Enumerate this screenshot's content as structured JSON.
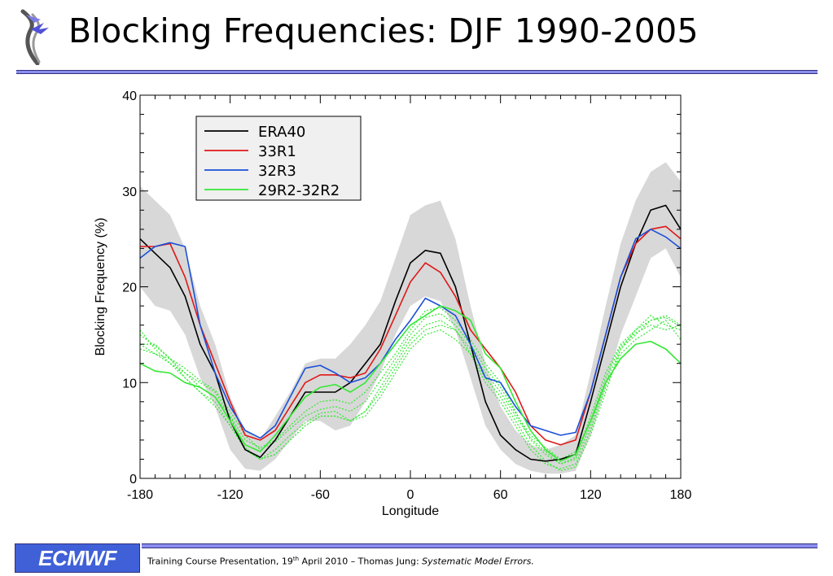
{
  "slide": {
    "title": "Blocking Frequencies: DJF 1990-2005",
    "footer": {
      "logo_text": "ECMWF",
      "prefix": "Training Course Presentation, 19",
      "superscript": "th",
      "middle": " April 2010 – Thomas Jung: ",
      "italic": "Systematic Model Errors."
    }
  },
  "chart_data": {
    "type": "line",
    "title": "",
    "xlabel": "Longitude",
    "ylabel": "Blocking Frequency (%)",
    "xlim": [
      -180,
      180
    ],
    "ylim": [
      0,
      40
    ],
    "xticks": [
      -180,
      -120,
      -60,
      0,
      60,
      120,
      180
    ],
    "yticks": [
      0,
      10,
      20,
      30,
      40
    ],
    "grid": false,
    "legend_position": "top-left",
    "x": [
      -180,
      -170,
      -160,
      -150,
      -140,
      -130,
      -120,
      -110,
      -100,
      -90,
      -80,
      -70,
      -60,
      -50,
      -40,
      -30,
      -20,
      -10,
      0,
      10,
      20,
      30,
      40,
      50,
      60,
      70,
      80,
      90,
      100,
      110,
      120,
      130,
      140,
      150,
      160,
      170,
      180
    ],
    "series": [
      {
        "name": "ERA40",
        "color": "#000000",
        "values": [
          25.0,
          23.5,
          22.0,
          19.0,
          14.0,
          11.0,
          6.0,
          3.0,
          2.2,
          4.0,
          6.5,
          9.0,
          9.0,
          9.0,
          10.0,
          12.0,
          14.0,
          18.5,
          22.5,
          23.8,
          23.5,
          20.0,
          14.0,
          8.0,
          4.5,
          3.0,
          2.0,
          1.8,
          2.0,
          2.5,
          8.0,
          14.0,
          20.0,
          24.5,
          28.0,
          28.5,
          26.0
        ]
      },
      {
        "name": "33R1",
        "color": "#e01818",
        "values": [
          24.2,
          24.2,
          24.5,
          21.0,
          16.0,
          12.0,
          8.0,
          4.5,
          4.0,
          5.0,
          7.5,
          10.0,
          10.8,
          10.8,
          10.5,
          11.0,
          13.5,
          17.0,
          20.5,
          22.5,
          21.5,
          19.0,
          15.5,
          13.5,
          11.5,
          9.0,
          5.5,
          4.0,
          3.5,
          4.0,
          9.0,
          15.0,
          21.0,
          24.5,
          26.0,
          26.3,
          25.0
        ]
      },
      {
        "name": "32R3",
        "color": "#1a50d8",
        "values": [
          23.0,
          24.2,
          24.6,
          24.2,
          16.0,
          11.0,
          7.5,
          5.0,
          4.2,
          5.5,
          8.5,
          11.5,
          11.8,
          11.0,
          10.0,
          10.5,
          12.0,
          14.5,
          16.5,
          18.8,
          18.0,
          17.0,
          14.0,
          10.5,
          10.0,
          7.5,
          5.5,
          5.0,
          4.5,
          4.8,
          9.0,
          15.0,
          21.0,
          25.0,
          26.0,
          25.2,
          24.0
        ]
      },
      {
        "name": "29R2-32R2",
        "color": "#33e833",
        "values": [
          12.0,
          11.2,
          11.0,
          10.0,
          9.5,
          8.5,
          6.0,
          3.5,
          2.8,
          4.5,
          6.5,
          8.5,
          9.5,
          9.8,
          9.0,
          10.0,
          12.0,
          14.0,
          16.0,
          17.0,
          18.0,
          17.5,
          16.5,
          13.0,
          11.5,
          8.0,
          5.0,
          3.0,
          1.8,
          2.5,
          6.0,
          10.0,
          12.5,
          14.0,
          14.3,
          13.5,
          12.0
        ]
      }
    ],
    "ensemble_lines": [
      {
        "color": "#33e833",
        "style": "dashed",
        "values": [
          15.5,
          13.5,
          12.0,
          11.0,
          10.0,
          9.0,
          6.5,
          4.0,
          3.2,
          4.0,
          5.5,
          7.0,
          8.0,
          8.2,
          7.8,
          9.0,
          11.0,
          13.0,
          15.5,
          17.5,
          17.8,
          16.5,
          14.5,
          12.0,
          10.0,
          7.0,
          4.0,
          2.5,
          1.5,
          2.2,
          6.5,
          11.0,
          14.0,
          15.5,
          16.5,
          16.8,
          15.8
        ]
      },
      {
        "color": "#33e833",
        "style": "dashed",
        "values": [
          14.0,
          14.0,
          12.5,
          11.0,
          9.5,
          8.5,
          6.5,
          3.0,
          2.0,
          3.0,
          4.5,
          5.8,
          6.8,
          7.0,
          6.0,
          7.0,
          9.5,
          12.0,
          14.5,
          16.0,
          16.5,
          15.5,
          13.5,
          11.0,
          9.0,
          6.5,
          4.2,
          2.8,
          1.5,
          2.0,
          5.5,
          10.0,
          13.5,
          15.0,
          16.5,
          17.0,
          16.0
        ]
      },
      {
        "color": "#33e833",
        "style": "dashed",
        "values": [
          14.0,
          13.0,
          12.0,
          10.5,
          9.0,
          7.5,
          5.5,
          3.0,
          2.0,
          2.5,
          4.0,
          5.5,
          6.5,
          6.5,
          6.0,
          6.5,
          8.5,
          11.0,
          13.5,
          15.0,
          15.5,
          14.5,
          13.0,
          10.5,
          8.5,
          6.0,
          3.5,
          1.8,
          0.8,
          1.2,
          4.5,
          9.0,
          13.5,
          15.5,
          17.0,
          16.0,
          15.5
        ]
      },
      {
        "color": "#33e833",
        "style": "dashed",
        "values": [
          15.0,
          13.8,
          12.5,
          11.5,
          10.2,
          9.2,
          7.0,
          4.5,
          3.0,
          3.8,
          5.2,
          6.5,
          7.2,
          7.5,
          7.0,
          8.0,
          10.2,
          12.5,
          15.0,
          16.8,
          17.2,
          16.0,
          14.0,
          11.5,
          9.5,
          6.8,
          4.5,
          3.2,
          2.0,
          2.8,
          6.0,
          10.5,
          13.8,
          15.2,
          16.0,
          15.5,
          16.0
        ]
      },
      {
        "color": "#33e833",
        "style": "dashed",
        "values": [
          13.5,
          13.0,
          12.5,
          10.5,
          9.0,
          8.0,
          5.5,
          3.2,
          2.0,
          2.5,
          4.0,
          5.5,
          6.5,
          6.5,
          6.0,
          7.0,
          9.0,
          11.5,
          14.0,
          15.5,
          16.0,
          15.5,
          13.0,
          10.0,
          8.0,
          5.5,
          3.0,
          1.5,
          1.0,
          1.5,
          5.0,
          9.5,
          13.0,
          14.5,
          15.5,
          16.5,
          14.5
        ]
      }
    ],
    "uncertainty_band": {
      "color": "#d8d8d8",
      "lower": [
        20.0,
        18.0,
        17.5,
        15.0,
        10.5,
        7.5,
        3.0,
        1.0,
        0.8,
        2.0,
        4.0,
        6.0,
        6.0,
        5.0,
        5.5,
        8.0,
        11.0,
        15.0,
        18.0,
        19.0,
        18.5,
        15.5,
        10.5,
        5.5,
        3.0,
        1.5,
        0.8,
        0.5,
        0.5,
        0.8,
        4.5,
        9.5,
        15.0,
        19.0,
        23.0,
        24.0,
        21.0
      ],
      "upper": [
        30.5,
        29.0,
        27.5,
        24.0,
        18.0,
        14.0,
        8.5,
        5.0,
        4.0,
        6.5,
        9.0,
        12.0,
        12.5,
        12.5,
        14.0,
        16.0,
        18.5,
        23.0,
        27.5,
        28.5,
        29.0,
        25.0,
        18.0,
        12.0,
        7.5,
        5.0,
        3.5,
        3.0,
        3.5,
        4.5,
        11.0,
        18.0,
        24.5,
        29.0,
        32.0,
        33.0,
        31.0
      ]
    }
  }
}
